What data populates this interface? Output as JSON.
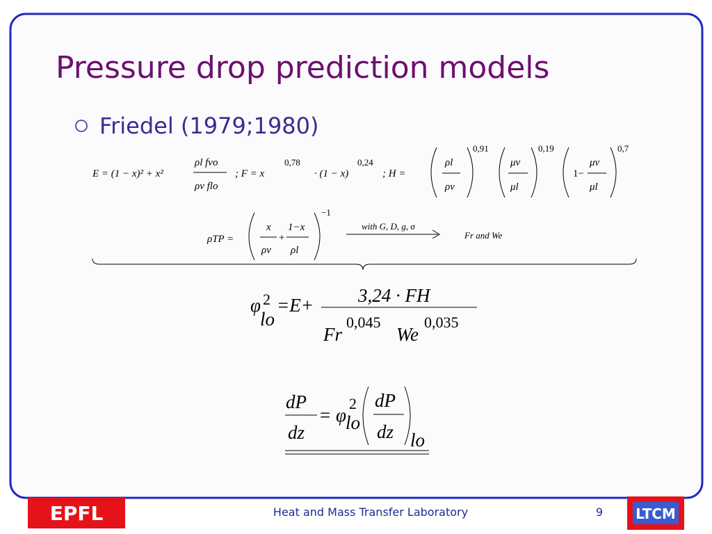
{
  "header": {
    "title": "Pressure drop prediction models"
  },
  "bullet": {
    "text": "Friedel (1979;1980)"
  },
  "eq1": {
    "e_lhs": "E = (1 − x)² + x²",
    "e_num": "ρl fvo",
    "e_den": "ρv flo",
    "f_lhs": "; F = x",
    "f_exp1": "0,78",
    "f_mid": "· (1 − x)",
    "f_exp2": "0,24",
    "h_lhs": "; H =",
    "h1_num": "ρl",
    "h1_den": "ρv",
    "h1_exp": "0,91",
    "h2_num": "μv",
    "h2_den": "μl",
    "h2_exp": "0,19",
    "h3_pre": "1−",
    "h3_num": "μv",
    "h3_den": "μl",
    "h3_exp": "0,7"
  },
  "eq2": {
    "lhs": "ρTP =",
    "a_num": "x",
    "a_den": "ρv",
    "plus": "+",
    "b_num": "1−x",
    "b_den": "ρl",
    "exp": "−1",
    "arrow_label": "with G, D, g, σ",
    "result": "Fr and We"
  },
  "eq3": {
    "phi": "φ",
    "sup": "2",
    "sub": "lo",
    "mid": "=E+",
    "num": "3,24 · FH",
    "fr": "Fr",
    "fr_exp": "0,045",
    "we": "We",
    "we_exp": "0,035"
  },
  "eq4": {
    "l_num": "dP",
    "l_den": "dz",
    "eq": "=",
    "phi": "φ",
    "sup": "2",
    "sub": "lo",
    "r_num": "dP",
    "r_den": "dz",
    "r_sub": "lo"
  },
  "footer": {
    "logo_left": "EPFL",
    "lab": "Heat and Mass Transfer Laboratory",
    "page": "9",
    "logo_right": "LTCM"
  }
}
